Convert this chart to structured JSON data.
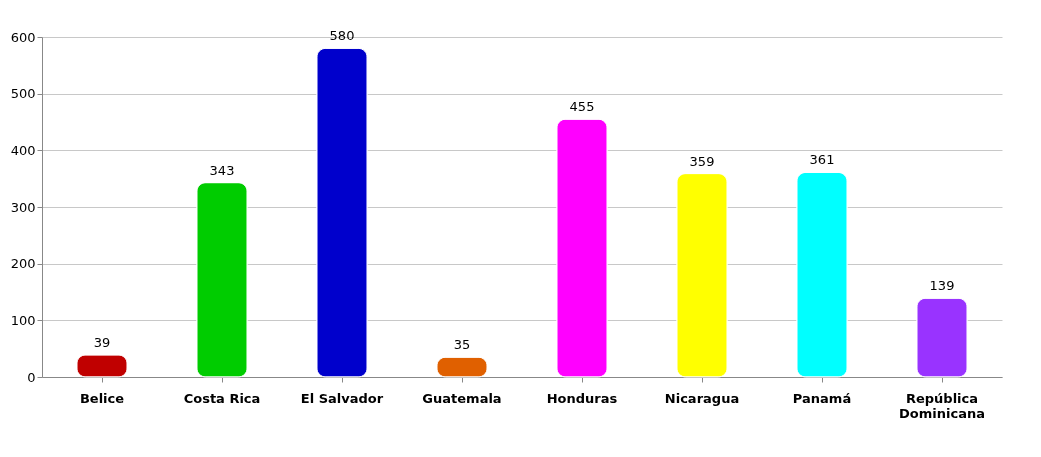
{
  "chart_data": {
    "type": "bar",
    "categories": [
      "Belice",
      "Costa Rica",
      "El Salvador",
      "Guatemala",
      "Honduras",
      "Nicaragua",
      "Panamá",
      "República Dominicana"
    ],
    "values": [
      39,
      343,
      580,
      35,
      455,
      359,
      361,
      139
    ],
    "colors": [
      "#c00000",
      "#00cc00",
      "#0000cc",
      "#e06000",
      "#ff00ff",
      "#ffff00",
      "#00ffff",
      "#9933ff"
    ],
    "ylim": [
      0,
      600
    ],
    "yticks": [
      0,
      100,
      200,
      300,
      400,
      500,
      600
    ],
    "grid": "y",
    "data_labels": true
  }
}
